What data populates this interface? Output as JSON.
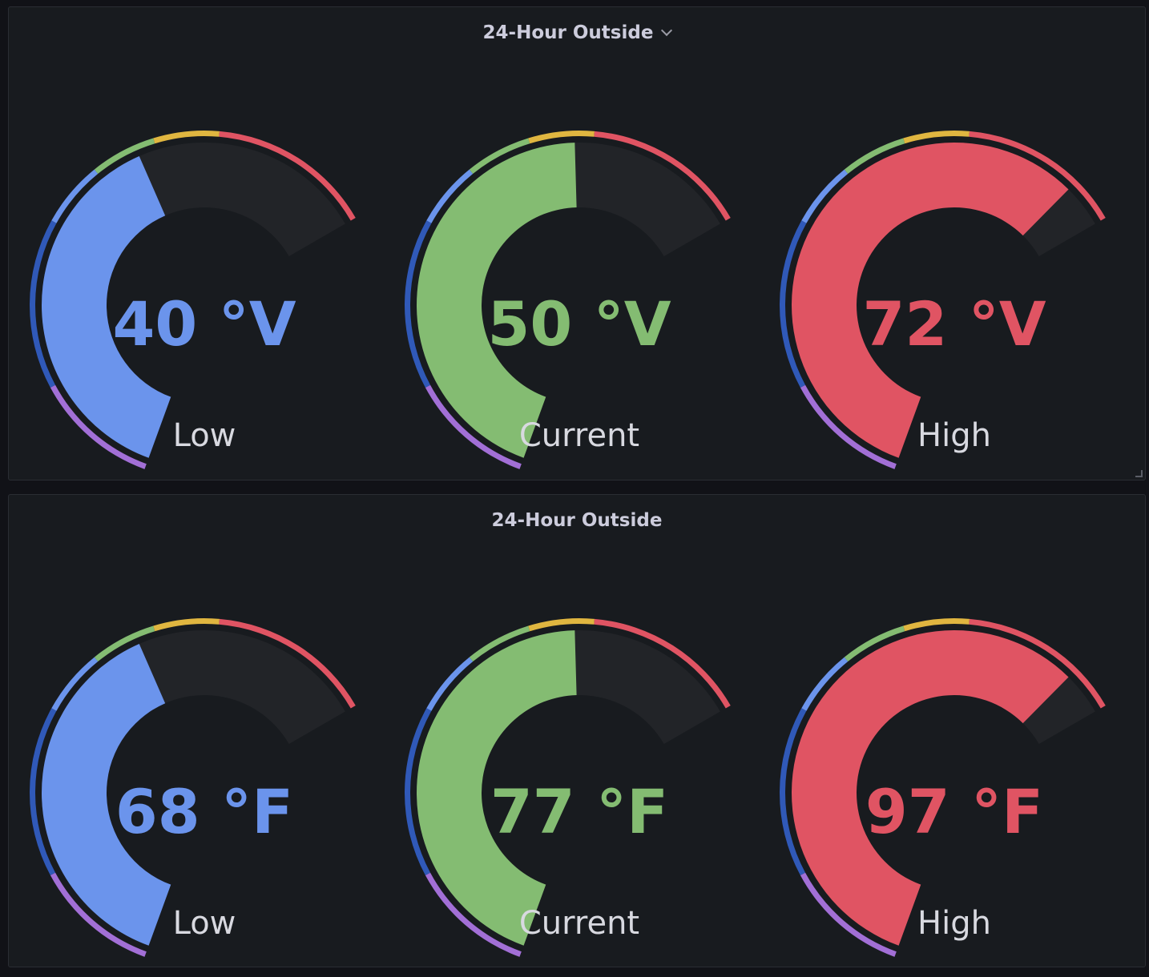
{
  "colors": {
    "purple": "#a26fd6",
    "dark_blue": "#3059b8",
    "blue": "#6b94ec",
    "green": "#84bc72",
    "yellow": "#e0b640",
    "red": "#e05463",
    "track": "#222428",
    "label": "#d8d9e0"
  },
  "thresholds": [
    {
      "color": "purple",
      "from": 0,
      "to": 0.19
    },
    {
      "color": "dark_blue",
      "from": 0.19,
      "to": 0.45
    },
    {
      "color": "blue",
      "from": 0.45,
      "to": 0.55
    },
    {
      "color": "green",
      "from": 0.55,
      "to": 0.65
    },
    {
      "color": "yellow",
      "from": 0.65,
      "to": 0.75
    },
    {
      "color": "red",
      "from": 0.75,
      "to": 1
    }
  ],
  "panels": [
    {
      "title": "24-Hour Outside",
      "has_menu": true,
      "gauges": [
        {
          "value_text": "40 °V",
          "label": "Low",
          "fill": 0.62,
          "color": "blue"
        },
        {
          "value_text": "50 °V",
          "label": "Current",
          "fill": 0.72,
          "color": "green"
        },
        {
          "value_text": "72 °V",
          "label": "High",
          "fill": 0.93,
          "color": "red"
        }
      ]
    },
    {
      "title": "24-Hour Outside",
      "has_menu": false,
      "gauges": [
        {
          "value_text": "68 °F",
          "label": "Low",
          "fill": 0.62,
          "color": "blue"
        },
        {
          "value_text": "77 °F",
          "label": "Current",
          "fill": 0.72,
          "color": "green"
        },
        {
          "value_text": "97 °F",
          "label": "High",
          "fill": 0.93,
          "color": "red"
        }
      ]
    }
  ]
}
